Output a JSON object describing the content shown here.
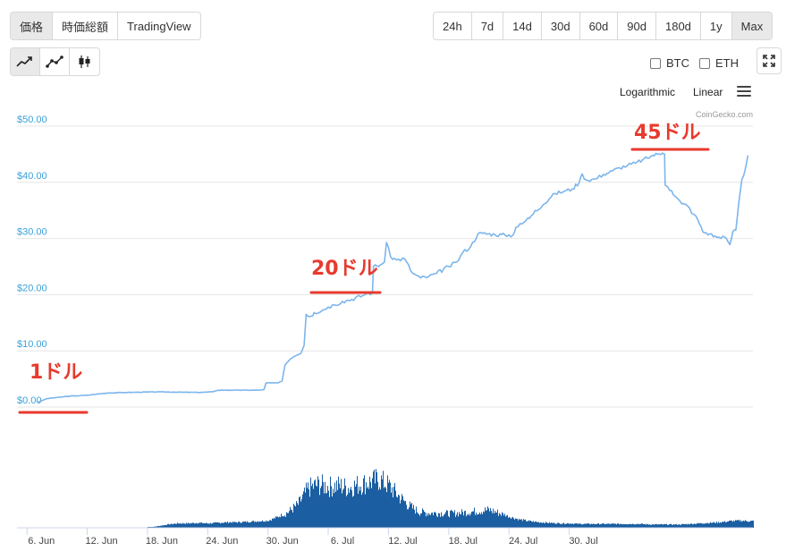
{
  "toolbar": {
    "view_tabs": [
      "価格",
      "時価総額",
      "TradingView"
    ],
    "active_view": 0,
    "ranges": [
      "24h",
      "7d",
      "14d",
      "30d",
      "60d",
      "90d",
      "180d",
      "1y",
      "Max"
    ],
    "active_range": 8,
    "chart_type_icons": [
      "line-chart-icon",
      "point-line-chart-icon",
      "candlestick-icon"
    ],
    "active_chart_type": 0,
    "compare": [
      "BTC",
      "ETH"
    ],
    "scales": [
      "Logarithmic",
      "Linear"
    ],
    "credit": "CoinGecko.com"
  },
  "chart_data": {
    "type": "line",
    "y_ticks": [
      "$50.00",
      "$40.00",
      "$30.00",
      "$20.00",
      "$10.00",
      "$0.00"
    ],
    "x_ticks": [
      "6. Jun",
      "12. Jun",
      "18. Jun",
      "24. Jun",
      "30. Jun",
      "6. Jul",
      "12. Jul",
      "18. Jul",
      "24. Jul",
      "30. Jul"
    ],
    "ylim": [
      0,
      50
    ],
    "line_color": "#7cb5ec",
    "volume_color": "#1b5ea1",
    "price_points": [
      [
        2.0,
        0.8
      ],
      [
        3.0,
        1.5
      ],
      [
        5.0,
        1.9
      ],
      [
        7.0,
        2.1
      ],
      [
        9.0,
        2.5
      ],
      [
        11.0,
        2.6
      ],
      [
        14.0,
        2.7
      ],
      [
        18.0,
        2.6
      ],
      [
        19.5,
        2.7
      ],
      [
        20.0,
        3.0
      ],
      [
        24.0,
        3.0
      ],
      [
        24.6,
        3.1
      ],
      [
        24.8,
        4.3
      ],
      [
        26.0,
        4.3
      ],
      [
        26.4,
        4.6
      ],
      [
        26.7,
        7.5
      ],
      [
        27.2,
        8.5
      ],
      [
        27.6,
        9.0
      ],
      [
        28.3,
        9.6
      ],
      [
        28.6,
        11.0
      ],
      [
        28.8,
        16.5
      ],
      [
        29.3,
        16.2
      ],
      [
        29.6,
        16.8
      ],
      [
        30.4,
        17.2
      ],
      [
        31.0,
        17.8
      ],
      [
        31.6,
        18.2
      ],
      [
        32.4,
        18.8
      ],
      [
        33.0,
        19.0
      ],
      [
        34.4,
        19.8
      ],
      [
        35.0,
        20.3
      ],
      [
        35.4,
        20.3
      ],
      [
        35.5,
        25.0
      ],
      [
        36.2,
        25.3
      ],
      [
        36.6,
        25.8
      ],
      [
        36.8,
        29.3
      ],
      [
        37.2,
        26.8
      ],
      [
        37.8,
        26.2
      ],
      [
        38.6,
        26.4
      ],
      [
        39.4,
        23.8
      ],
      [
        40.2,
        23.0
      ],
      [
        41.0,
        23.2
      ],
      [
        41.8,
        23.8
      ],
      [
        43.0,
        25.0
      ],
      [
        43.8,
        25.8
      ],
      [
        44.4,
        27.5
      ],
      [
        45.2,
        28.6
      ],
      [
        45.9,
        30.8
      ],
      [
        46.4,
        30.9
      ],
      [
        47.6,
        30.7
      ],
      [
        48.6,
        30.6
      ],
      [
        49.4,
        30.6
      ],
      [
        49.7,
        32.0
      ],
      [
        50.3,
        32.6
      ],
      [
        51.2,
        34.0
      ],
      [
        51.6,
        35.0
      ],
      [
        52.4,
        36.0
      ],
      [
        53.0,
        37.0
      ],
      [
        53.6,
        38.0
      ],
      [
        54.5,
        38.4
      ],
      [
        55.3,
        38.8
      ],
      [
        56.0,
        40.0
      ],
      [
        56.3,
        41.5
      ],
      [
        56.7,
        40.4
      ],
      [
        57.6,
        40.6
      ],
      [
        58.4,
        41.4
      ],
      [
        59.3,
        42.0
      ],
      [
        60.0,
        42.6
      ],
      [
        60.8,
        43.0
      ],
      [
        61.6,
        43.4
      ],
      [
        62.3,
        44.0
      ],
      [
        62.8,
        44.3
      ],
      [
        63.3,
        44.8
      ],
      [
        63.8,
        45.0
      ],
      [
        64.3,
        45.2
      ],
      [
        64.5,
        45.0
      ],
      [
        64.55,
        39.5
      ],
      [
        64.8,
        39.2
      ],
      [
        65.2,
        38.5
      ],
      [
        65.7,
        37.3
      ],
      [
        66.2,
        36.2
      ],
      [
        66.8,
        35.8
      ],
      [
        67.4,
        34.3
      ],
      [
        67.8,
        33.4
      ],
      [
        68.3,
        31.2
      ],
      [
        69.0,
        30.8
      ],
      [
        69.7,
        30.2
      ],
      [
        70.3,
        30.4
      ],
      [
        70.8,
        29.5
      ],
      [
        71.0,
        28.9
      ],
      [
        71.3,
        31.2
      ],
      [
        71.6,
        31.5
      ],
      [
        71.9,
        36.5
      ],
      [
        72.2,
        40.5
      ],
      [
        72.5,
        42.0
      ],
      [
        72.8,
        44.8
      ]
    ],
    "volume_profile": [
      [
        0,
        0
      ],
      [
        1,
        0
      ],
      [
        2,
        0
      ],
      [
        3,
        0
      ],
      [
        4,
        0
      ],
      [
        5,
        0
      ],
      [
        6,
        0
      ],
      [
        7,
        0
      ],
      [
        8,
        0
      ],
      [
        9,
        0
      ],
      [
        10,
        0
      ],
      [
        11,
        0
      ],
      [
        12,
        0
      ],
      [
        13,
        0
      ],
      [
        14,
        0.03
      ],
      [
        15,
        0.06
      ],
      [
        16,
        0.08
      ],
      [
        17,
        0.08
      ],
      [
        18,
        0.09
      ],
      [
        19,
        0.08
      ],
      [
        20,
        0.09
      ],
      [
        21,
        0.1
      ],
      [
        22,
        0.1
      ],
      [
        23,
        0.11
      ],
      [
        24,
        0.12
      ],
      [
        25,
        0.13
      ],
      [
        26,
        0.2
      ],
      [
        27,
        0.3
      ],
      [
        28,
        0.45
      ],
      [
        29,
        0.75
      ],
      [
        30,
        0.82
      ],
      [
        31,
        0.78
      ],
      [
        32,
        0.8
      ],
      [
        33,
        0.76
      ],
      [
        34,
        0.82
      ],
      [
        35,
        0.86
      ],
      [
        36,
        0.92
      ],
      [
        37,
        0.8
      ],
      [
        38,
        0.6
      ],
      [
        39,
        0.42
      ],
      [
        40,
        0.3
      ],
      [
        41,
        0.28
      ],
      [
        42,
        0.28
      ],
      [
        43,
        0.27
      ],
      [
        44,
        0.28
      ],
      [
        45,
        0.3
      ],
      [
        46,
        0.32
      ],
      [
        47,
        0.34
      ],
      [
        48,
        0.28
      ],
      [
        49,
        0.2
      ],
      [
        50,
        0.15
      ],
      [
        51,
        0.12
      ],
      [
        52,
        0.1
      ],
      [
        53,
        0.09
      ],
      [
        54,
        0.08
      ],
      [
        55,
        0.08
      ],
      [
        56,
        0.07
      ],
      [
        57,
        0.07
      ],
      [
        58,
        0.07
      ],
      [
        59,
        0.07
      ],
      [
        60,
        0.07
      ],
      [
        61,
        0.07
      ],
      [
        62,
        0.07
      ],
      [
        63,
        0.06
      ],
      [
        64,
        0.06
      ],
      [
        65,
        0.06
      ],
      [
        66,
        0.06
      ],
      [
        67,
        0.07
      ],
      [
        68,
        0.08
      ],
      [
        69,
        0.09
      ],
      [
        70,
        0.1
      ],
      [
        71,
        0.12
      ],
      [
        72,
        0.13
      ],
      [
        73,
        0.12
      ]
    ]
  },
  "annotations": [
    "1ドル",
    "20ドル",
    "45ドル"
  ]
}
